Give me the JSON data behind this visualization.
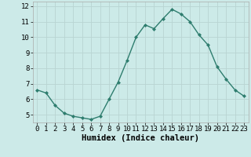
{
  "x": [
    0,
    1,
    2,
    3,
    4,
    5,
    6,
    7,
    8,
    9,
    10,
    11,
    12,
    13,
    14,
    15,
    16,
    17,
    18,
    19,
    20,
    21,
    22,
    23
  ],
  "y": [
    6.6,
    6.4,
    5.6,
    5.1,
    4.9,
    4.8,
    4.7,
    4.9,
    6.0,
    7.1,
    8.5,
    10.0,
    10.8,
    10.55,
    11.2,
    11.8,
    11.5,
    11.0,
    10.15,
    9.5,
    8.1,
    7.3,
    6.6,
    6.2
  ],
  "line_color": "#2e7d6e",
  "marker": "D",
  "marker_size": 2.0,
  "line_width": 1.0,
  "xlabel": "Humidex (Indice chaleur)",
  "xlim": [
    -0.5,
    23.5
  ],
  "ylim": [
    4.5,
    12.3
  ],
  "yticks": [
    5,
    6,
    7,
    8,
    9,
    10,
    11,
    12
  ],
  "xticks": [
    0,
    1,
    2,
    3,
    4,
    5,
    6,
    7,
    8,
    9,
    10,
    11,
    12,
    13,
    14,
    15,
    16,
    17,
    18,
    19,
    20,
    21,
    22,
    23
  ],
  "bg_color": "#cceae8",
  "grid_color": "#b8d4d2",
  "tick_fontsize": 6.5,
  "xlabel_fontsize": 7.5,
  "xlabel_fontweight": "bold"
}
